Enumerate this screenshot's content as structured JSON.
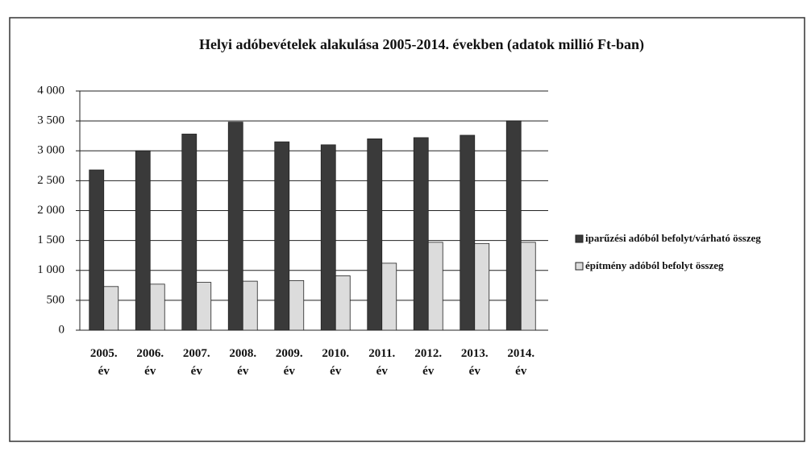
{
  "chart_data": {
    "type": "bar",
    "title": "Helyi adóbevételek alakulása 2005-2014. években (adatok millió Ft-ban)",
    "categories": [
      "2005. év",
      "2006. év",
      "2007. év",
      "2008. év",
      "2009. év",
      "2010. év",
      "2011. év",
      "2012. év",
      "2013. év",
      "2014. év"
    ],
    "series": [
      {
        "name": "iparűzési adóból befolyt/várható összeg",
        "color": "#3a3a3a",
        "values": [
          2680,
          3000,
          3280,
          3480,
          3150,
          3100,
          3200,
          3220,
          3260,
          3500
        ]
      },
      {
        "name": "építmény adóból befolyt összeg",
        "color": "#dcdcdc",
        "values": [
          730,
          770,
          800,
          820,
          830,
          910,
          1120,
          1470,
          1450,
          1470
        ]
      }
    ],
    "ylim": [
      0,
      4000
    ],
    "yticks": [
      0,
      500,
      {
        "value": 1000,
        "label": "1 000"
      },
      {
        "value": 1500,
        "label": "1 500"
      },
      {
        "value": 2000,
        "label": "2 000"
      },
      {
        "value": 2500,
        "label": "2 500"
      },
      {
        "value": 3000,
        "label": "3 000"
      },
      {
        "value": 3500,
        "label": "3 500"
      },
      {
        "value": 4000,
        "label": "4 000"
      }
    ],
    "grid": true,
    "legend": "right"
  }
}
